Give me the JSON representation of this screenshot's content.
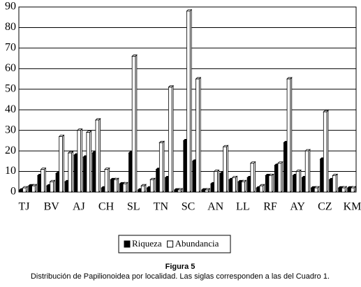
{
  "chart_data": {
    "type": "bar",
    "caption_title": "Figura 5",
    "caption": "Distribución de Papilionoidea por localidad. Las siglas corresponden a las del Cuadro 1.",
    "categories": [
      "TJ",
      null,
      null,
      "BV",
      null,
      null,
      "AJ",
      null,
      null,
      "CH",
      null,
      null,
      "SL",
      null,
      null,
      "TN",
      null,
      null,
      "SC",
      null,
      null,
      "AN",
      null,
      null,
      "LL",
      null,
      null,
      "RF",
      null,
      null,
      "AY",
      null,
      null,
      "CZ",
      null,
      null,
      "KM"
    ],
    "series": [
      {
        "name": "Riqueza",
        "color": "#000000",
        "values": [
          1,
          3,
          8,
          3,
          9,
          5,
          18,
          17,
          19,
          2,
          6,
          4,
          19,
          1,
          2,
          11,
          7,
          1,
          25,
          15,
          1,
          4,
          9,
          6,
          5,
          7,
          2,
          8,
          13,
          24,
          8,
          7,
          2,
          16,
          6,
          2,
          2
        ]
      },
      {
        "name": "Abundancia",
        "color": "#ffffff",
        "values": [
          2,
          3,
          11,
          5,
          27,
          19,
          30,
          29,
          35,
          11,
          6,
          4,
          66,
          3,
          6,
          24,
          51,
          1,
          88,
          55,
          1,
          10,
          22,
          7,
          5,
          14,
          3,
          8,
          14,
          55,
          10,
          20,
          2,
          39,
          8,
          2,
          2
        ]
      }
    ],
    "ylim": [
      0,
      90
    ],
    "yticks": [
      0,
      10,
      20,
      30,
      40,
      50,
      60,
      70,
      80,
      90
    ],
    "grid": true,
    "legend": "bottom"
  }
}
